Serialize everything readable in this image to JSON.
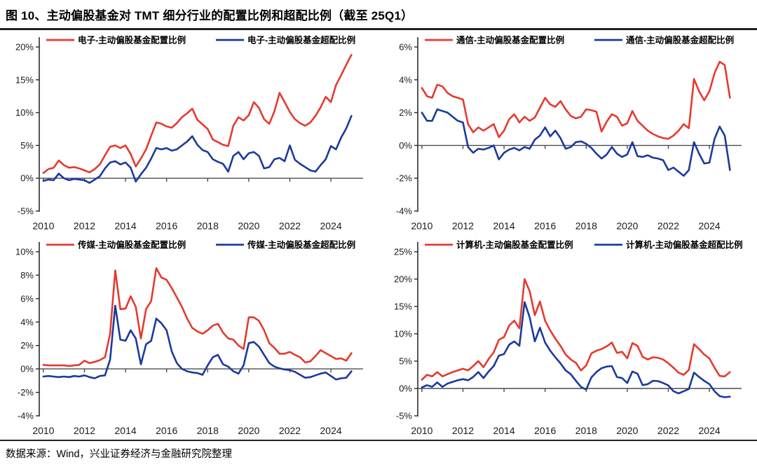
{
  "page": {
    "title": "图 10、主动偏股基金对 TMT 细分行业的配置比例和超配比例（截至 25Q1）",
    "source": "数据来源：Wind，兴业证券经济与金融研究院整理"
  },
  "colors": {
    "allocation": "#e53a2e",
    "overweight": "#1b3a9d",
    "axis": "#4d4d4d",
    "text": "#1a1a1a"
  },
  "chart_data": [
    {
      "type": "line",
      "panel": "电子",
      "x_start": "2010Q1",
      "x_end": "2025Q1",
      "x_freq": "quarterly",
      "xtick_years": [
        2010,
        2012,
        2014,
        2016,
        2018,
        2020,
        2022,
        2024
      ],
      "ylim": [
        -5,
        20
      ],
      "ytick_step": 5,
      "grid": false,
      "legend_position": "top",
      "series": [
        {
          "name": "电子-主动偏股基金配置比例",
          "role": "allocation",
          "values": [
            0.8,
            1.4,
            1.6,
            2.7,
            2.0,
            1.6,
            1.7,
            1.5,
            1.2,
            0.9,
            1.4,
            2.1,
            3.5,
            4.8,
            5.0,
            4.6,
            5.0,
            3.7,
            1.8,
            3.0,
            4.4,
            6.5,
            8.5,
            8.3,
            7.9,
            7.7,
            8.4,
            9.3,
            9.9,
            10.6,
            8.9,
            8.2,
            7.5,
            5.9,
            5.5,
            5.1,
            4.9,
            8.0,
            9.3,
            8.8,
            9.6,
            11.6,
            10.7,
            9.0,
            8.3,
            10.2,
            13.0,
            11.6,
            10.1,
            9.0,
            8.4,
            8.0,
            8.5,
            9.5,
            10.8,
            12.4,
            11.6,
            14.2,
            15.7,
            17.3,
            18.8
          ]
        },
        {
          "name": "电子-主动偏股基金超配比例",
          "role": "overweight",
          "values": [
            -0.4,
            -0.2,
            -0.3,
            0.7,
            0.0,
            -0.3,
            -0.1,
            -0.2,
            -0.3,
            -0.7,
            -0.2,
            0.3,
            1.5,
            2.4,
            2.6,
            2.1,
            2.4,
            1.6,
            -0.5,
            0.6,
            1.6,
            3.0,
            4.6,
            4.4,
            4.6,
            4.2,
            4.4,
            5.0,
            5.6,
            6.4,
            5.1,
            4.3,
            4.0,
            2.9,
            2.5,
            2.2,
            1.0,
            3.4,
            4.0,
            2.9,
            3.8,
            4.0,
            3.4,
            1.5,
            1.7,
            2.9,
            3.1,
            2.6,
            5.0,
            2.8,
            2.2,
            1.7,
            1.2,
            1.0,
            2.0,
            2.9,
            4.9,
            4.4,
            6.2,
            7.6,
            9.5
          ]
        }
      ]
    },
    {
      "type": "line",
      "panel": "通信",
      "x_start": "2010Q1",
      "x_end": "2025Q1",
      "x_freq": "quarterly",
      "xtick_years": [
        2010,
        2012,
        2014,
        2016,
        2018,
        2020,
        2022,
        2024
      ],
      "ylim": [
        -4,
        6
      ],
      "ytick_step": 2,
      "grid": false,
      "legend_position": "top",
      "series": [
        {
          "name": "通信-主动偏股基金配置比例",
          "role": "allocation",
          "values": [
            3.5,
            3.0,
            2.9,
            3.7,
            3.6,
            3.2,
            3.0,
            2.9,
            2.8,
            1.3,
            0.8,
            1.1,
            0.9,
            1.1,
            1.3,
            0.5,
            0.9,
            1.6,
            1.9,
            1.4,
            1.75,
            1.5,
            1.7,
            2.3,
            2.9,
            2.5,
            2.35,
            2.7,
            2.2,
            1.8,
            1.65,
            1.75,
            2.2,
            2.15,
            2.05,
            0.85,
            1.45,
            1.9,
            1.75,
            1.2,
            1.35,
            2.1,
            1.5,
            1.2,
            0.9,
            0.7,
            0.55,
            0.45,
            0.4,
            0.6,
            0.9,
            1.3,
            1.05,
            4.05,
            3.3,
            2.75,
            3.3,
            4.4,
            5.1,
            4.9,
            2.9
          ]
        },
        {
          "name": "通信-主动偏股基金超配比例",
          "role": "overweight",
          "values": [
            2.0,
            1.5,
            1.5,
            2.2,
            2.1,
            2.0,
            1.75,
            1.5,
            1.4,
            -0.1,
            -0.45,
            -0.2,
            -0.25,
            -0.15,
            0.0,
            -0.85,
            -0.45,
            -0.25,
            -0.15,
            -0.3,
            -0.1,
            -0.2,
            0.35,
            0.6,
            1.1,
            0.55,
            0.9,
            0.45,
            -0.2,
            -0.1,
            0.2,
            0.25,
            0.1,
            -0.15,
            -0.5,
            -0.8,
            -0.55,
            -0.1,
            -0.5,
            -0.7,
            -0.55,
            0.2,
            -0.65,
            -0.7,
            -0.6,
            -0.75,
            -0.8,
            -0.9,
            -1.5,
            -1.35,
            -1.6,
            -1.85,
            -1.5,
            0.2,
            -0.5,
            -1.1,
            -1.05,
            0.4,
            1.15,
            0.6,
            -1.5
          ]
        }
      ]
    },
    {
      "type": "line",
      "panel": "传媒",
      "x_start": "2010Q1",
      "x_end": "2025Q1",
      "x_freq": "quarterly",
      "xtick_years": [
        2010,
        2012,
        2014,
        2016,
        2018,
        2020,
        2022,
        2024
      ],
      "ylim": [
        -4,
        10
      ],
      "ytick_step": 2,
      "grid": false,
      "legend_position": "top",
      "series": [
        {
          "name": "传媒-主动偏股基金配置比例",
          "role": "allocation",
          "values": [
            0.35,
            0.3,
            0.3,
            0.3,
            0.3,
            0.25,
            0.3,
            0.35,
            0.7,
            0.5,
            0.6,
            0.75,
            1.0,
            3.0,
            8.4,
            5.1,
            5.15,
            6.2,
            5.3,
            2.6,
            5.1,
            5.8,
            8.6,
            7.8,
            7.6,
            6.9,
            6.1,
            5.3,
            4.3,
            3.5,
            3.2,
            3.0,
            3.3,
            3.7,
            3.85,
            3.1,
            2.6,
            2.5,
            2.0,
            1.7,
            4.4,
            4.4,
            4.1,
            3.3,
            2.2,
            1.8,
            1.3,
            1.3,
            1.45,
            1.2,
            1.0,
            0.55,
            0.65,
            1.1,
            1.6,
            1.35,
            1.1,
            0.85,
            0.9,
            0.7,
            1.35
          ]
        },
        {
          "name": "传媒-主动偏股基金超配比例",
          "role": "overweight",
          "values": [
            -0.65,
            -0.6,
            -0.65,
            -0.7,
            -0.65,
            -0.7,
            -0.6,
            -0.65,
            -0.55,
            -0.7,
            -0.8,
            -0.6,
            -0.55,
            0.8,
            5.4,
            2.5,
            2.4,
            3.3,
            2.6,
            0.4,
            2.1,
            2.4,
            4.3,
            3.9,
            3.3,
            1.5,
            0.5,
            0.0,
            -0.2,
            -0.3,
            -0.35,
            -0.5,
            0.3,
            1.0,
            1.2,
            0.4,
            0.2,
            -0.2,
            -0.4,
            0.3,
            2.2,
            2.3,
            1.9,
            1.2,
            0.5,
            0.2,
            0.05,
            -0.05,
            -0.1,
            -0.25,
            -0.5,
            -0.75,
            -0.7,
            -0.55,
            -0.4,
            -0.3,
            -0.6,
            -0.9,
            -0.8,
            -0.75,
            -0.2
          ]
        }
      ]
    },
    {
      "type": "line",
      "panel": "计算机",
      "x_start": "2010Q1",
      "x_end": "2025Q1",
      "x_freq": "quarterly",
      "xtick_years": [
        2010,
        2012,
        2014,
        2016,
        2018,
        2020,
        2022,
        2024
      ],
      "ylim": [
        -5,
        25
      ],
      "ytick_step": 5,
      "grid": false,
      "legend_position": "top",
      "series": [
        {
          "name": "计算机-主动偏股基金配置比例",
          "role": "allocation",
          "values": [
            1.6,
            2.5,
            2.2,
            3.0,
            2.2,
            2.6,
            3.0,
            3.3,
            3.6,
            3.3,
            4.1,
            5.0,
            3.9,
            5.4,
            6.6,
            8.9,
            9.4,
            11.5,
            12.4,
            11.0,
            20.0,
            17.8,
            13.4,
            15.9,
            12.4,
            10.6,
            9.1,
            7.8,
            6.2,
            5.3,
            4.7,
            3.3,
            4.2,
            6.4,
            6.9,
            7.2,
            7.7,
            8.4,
            6.5,
            6.7,
            5.5,
            8.3,
            7.8,
            5.8,
            5.3,
            5.7,
            5.6,
            5.3,
            4.6,
            3.8,
            2.9,
            2.5,
            3.4,
            8.1,
            7.2,
            6.2,
            5.5,
            3.8,
            2.3,
            2.2,
            3.0
          ]
        },
        {
          "name": "计算机-主动偏股基金超配比例",
          "role": "overweight",
          "values": [
            0.2,
            0.6,
            0.3,
            1.1,
            0.3,
            0.9,
            1.2,
            1.5,
            1.7,
            1.5,
            2.1,
            3.0,
            1.9,
            3.1,
            4.1,
            6.0,
            6.3,
            8.0,
            8.6,
            7.8,
            15.8,
            13.0,
            8.6,
            11.1,
            8.4,
            6.9,
            5.7,
            4.6,
            3.3,
            2.6,
            1.4,
            0.3,
            -0.2,
            2.0,
            3.0,
            3.7,
            4.0,
            4.1,
            2.1,
            1.9,
            1.0,
            3.1,
            2.7,
            0.6,
            0.8,
            1.4,
            1.35,
            1.0,
            0.55,
            -0.5,
            -0.9,
            -0.5,
            -0.1,
            2.9,
            2.1,
            1.4,
            0.8,
            -0.5,
            -1.4,
            -1.6,
            -1.5
          ]
        }
      ]
    }
  ]
}
